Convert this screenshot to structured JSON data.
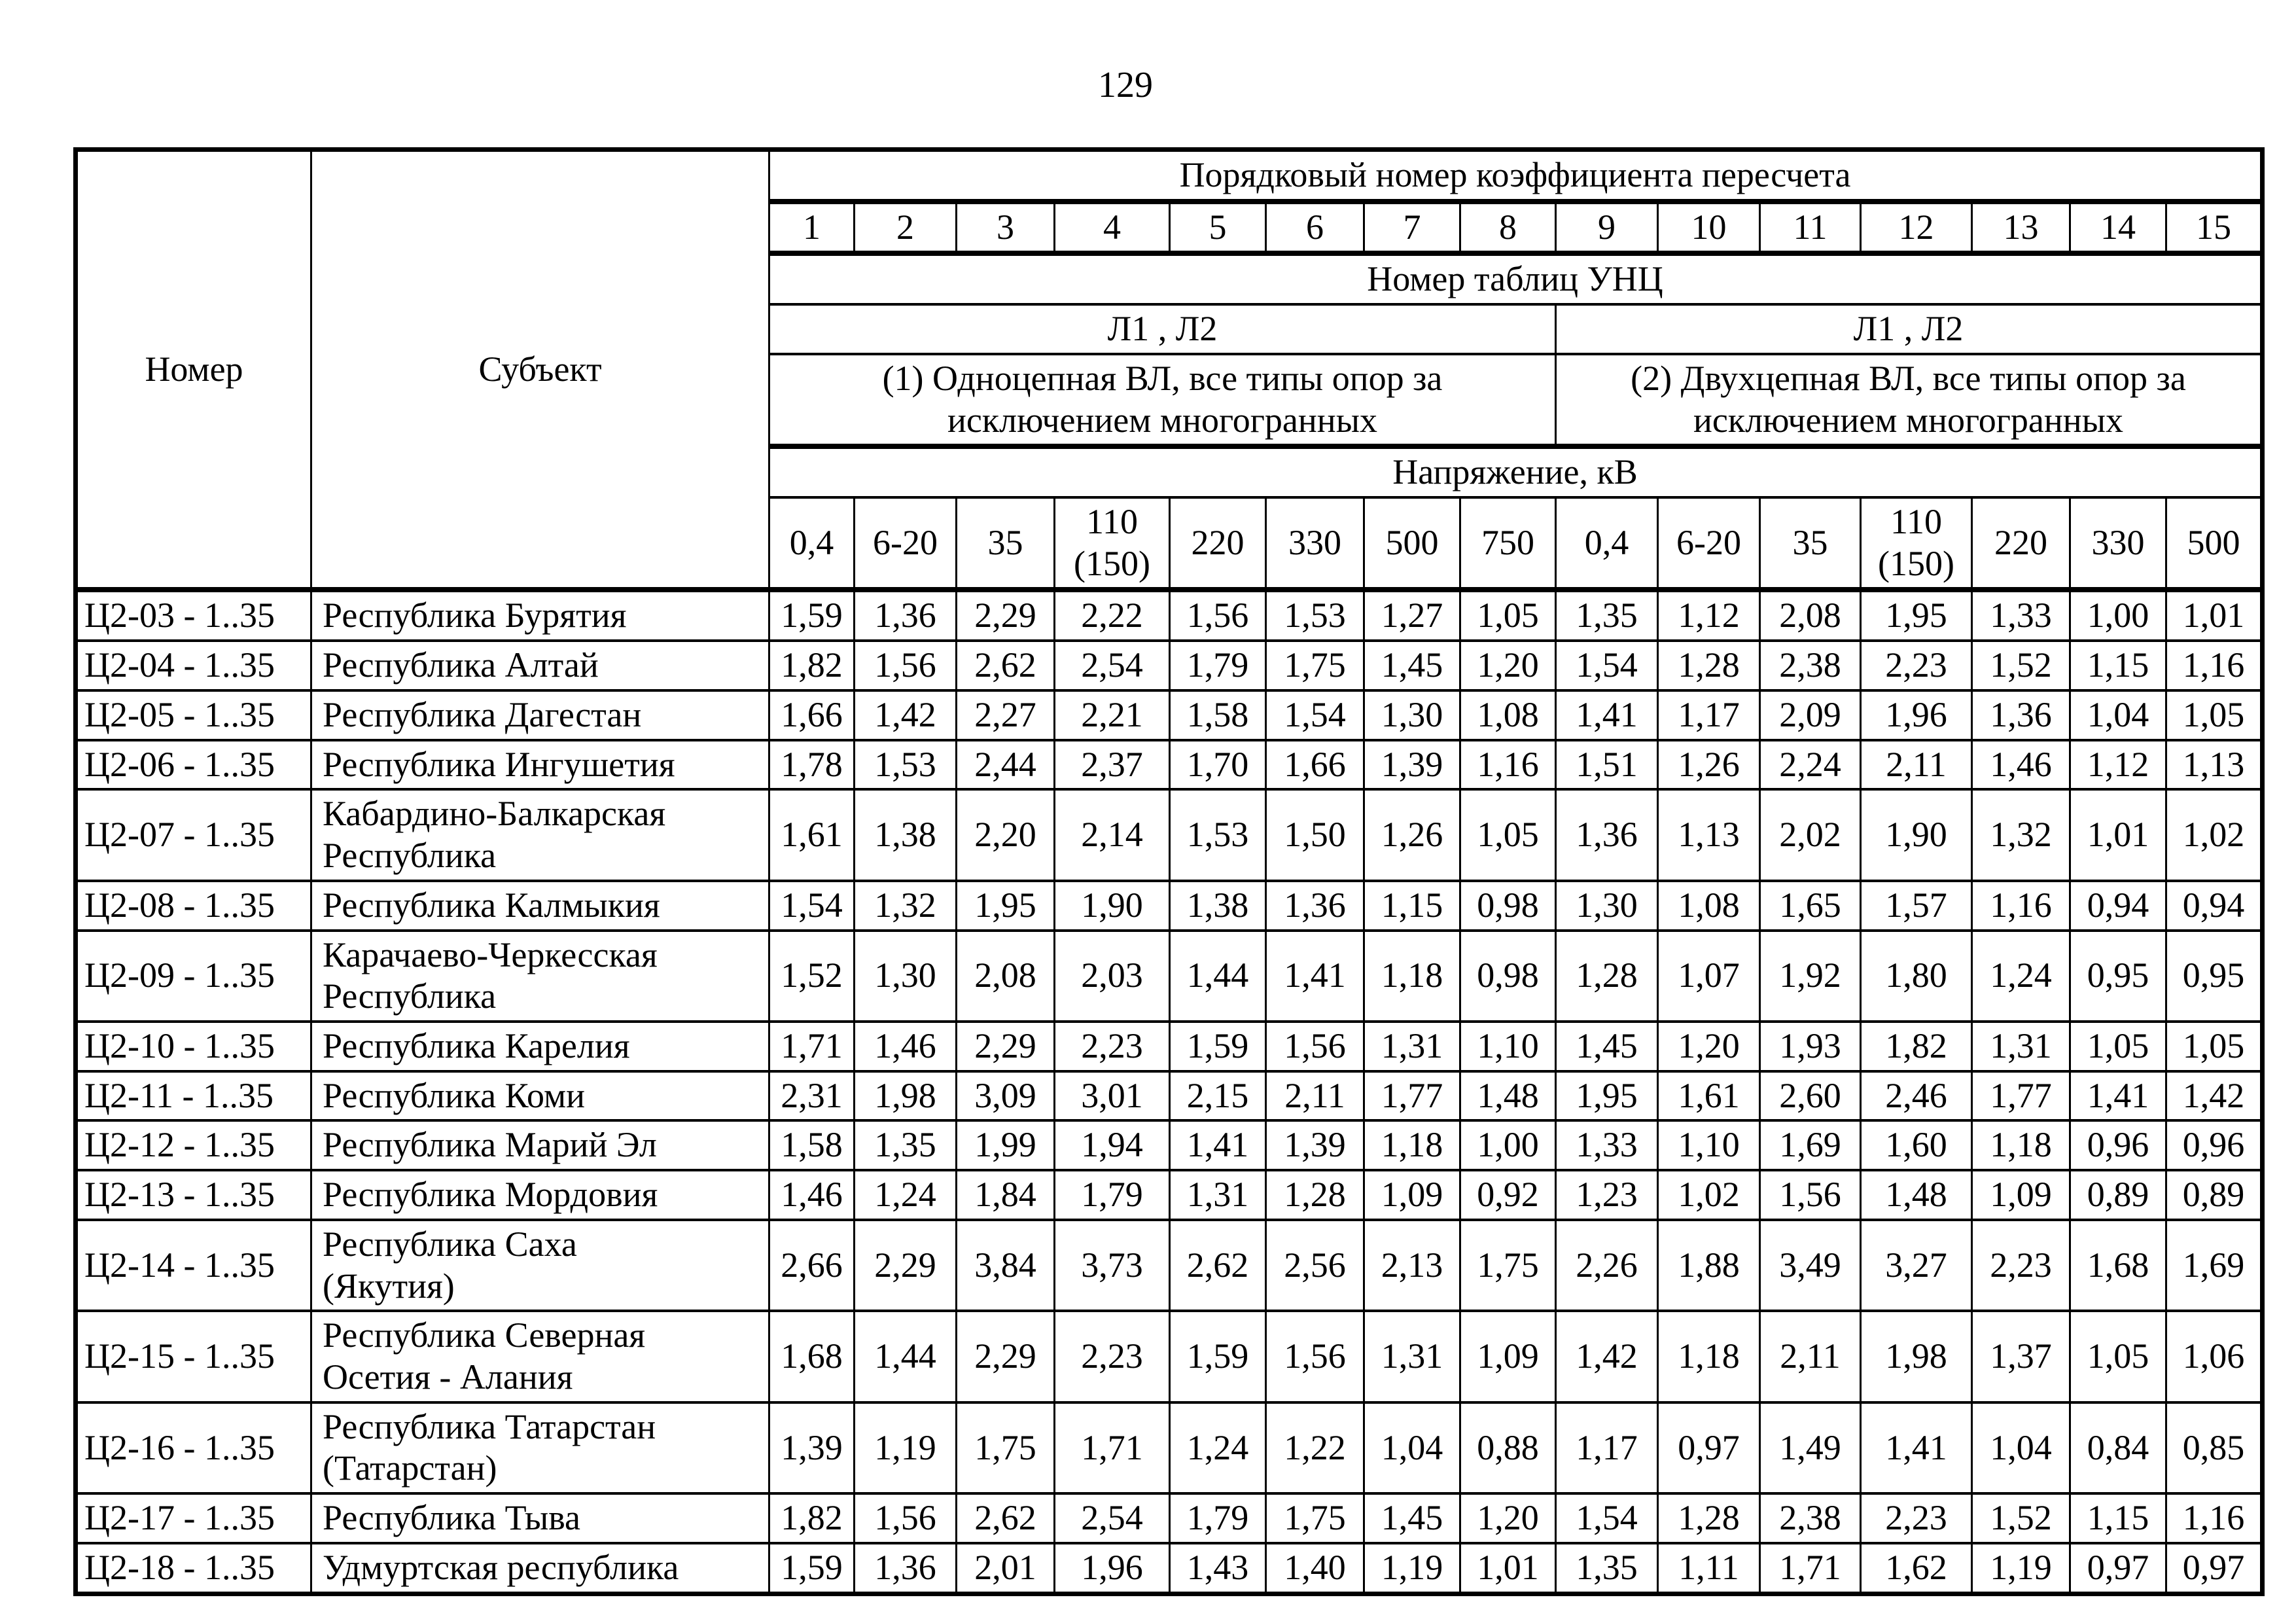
{
  "page_number": "129",
  "colors": {
    "ink": "#000000",
    "paper": "#ffffff"
  },
  "table": {
    "headers": {
      "number_col": "Номер",
      "subject_col": "Субъект",
      "ordinal_title": "Порядковый номер коэффициента пересчета",
      "ordinal_numbers": [
        "1",
        "2",
        "3",
        "4",
        "5",
        "6",
        "7",
        "8",
        "9",
        "10",
        "11",
        "12",
        "13",
        "14",
        "15"
      ],
      "unc_title": "Номер таблиц УНЦ",
      "group1_tables": "Л1 , Л2",
      "group2_tables": "Л1 , Л2",
      "group1_desc": "(1) Одноцепная ВЛ, все типы опор за\nисключением многогранных",
      "group2_desc": "(2) Двухцепная ВЛ, все типы опор за\nисключением многогранных",
      "voltage_title": "Напряжение, кВ",
      "voltages": [
        "0,4",
        "6-20",
        "35",
        "110\n(150)",
        "220",
        "330",
        "500",
        "750",
        "0,4",
        "6-20",
        "35",
        "110\n(150)",
        "220",
        "330",
        "500"
      ]
    },
    "rows": [
      {
        "nomer": "Ц2-03 - 1..35",
        "subject": "Республика Бурятия",
        "values": [
          "1,59",
          "1,36",
          "2,29",
          "2,22",
          "1,56",
          "1,53",
          "1,27",
          "1,05",
          "1,35",
          "1,12",
          "2,08",
          "1,95",
          "1,33",
          "1,00",
          "1,01"
        ]
      },
      {
        "nomer": "Ц2-04 - 1..35",
        "subject": "Республика Алтай",
        "values": [
          "1,82",
          "1,56",
          "2,62",
          "2,54",
          "1,79",
          "1,75",
          "1,45",
          "1,20",
          "1,54",
          "1,28",
          "2,38",
          "2,23",
          "1,52",
          "1,15",
          "1,16"
        ]
      },
      {
        "nomer": "Ц2-05 - 1..35",
        "subject": "Республика Дагестан",
        "values": [
          "1,66",
          "1,42",
          "2,27",
          "2,21",
          "1,58",
          "1,54",
          "1,30",
          "1,08",
          "1,41",
          "1,17",
          "2,09",
          "1,96",
          "1,36",
          "1,04",
          "1,05"
        ]
      },
      {
        "nomer": "Ц2-06 - 1..35",
        "subject": "Республика Ингушетия",
        "values": [
          "1,78",
          "1,53",
          "2,44",
          "2,37",
          "1,70",
          "1,66",
          "1,39",
          "1,16",
          "1,51",
          "1,26",
          "2,24",
          "2,11",
          "1,46",
          "1,12",
          "1,13"
        ]
      },
      {
        "nomer": "Ц2-07 - 1..35",
        "subject": "Кабардино-Балкарская\nРеспублика",
        "values": [
          "1,61",
          "1,38",
          "2,20",
          "2,14",
          "1,53",
          "1,50",
          "1,26",
          "1,05",
          "1,36",
          "1,13",
          "2,02",
          "1,90",
          "1,32",
          "1,01",
          "1,02"
        ]
      },
      {
        "nomer": "Ц2-08 - 1..35",
        "subject": "Республика Калмыкия",
        "values": [
          "1,54",
          "1,32",
          "1,95",
          "1,90",
          "1,38",
          "1,36",
          "1,15",
          "0,98",
          "1,30",
          "1,08",
          "1,65",
          "1,57",
          "1,16",
          "0,94",
          "0,94"
        ]
      },
      {
        "nomer": "Ц2-09 - 1..35",
        "subject": "Карачаево-Черкесская\nРеспублика",
        "values": [
          "1,52",
          "1,30",
          "2,08",
          "2,03",
          "1,44",
          "1,41",
          "1,18",
          "0,98",
          "1,28",
          "1,07",
          "1,92",
          "1,80",
          "1,24",
          "0,95",
          "0,95"
        ]
      },
      {
        "nomer": "Ц2-10 - 1..35",
        "subject": "Республика Карелия",
        "values": [
          "1,71",
          "1,46",
          "2,29",
          "2,23",
          "1,59",
          "1,56",
          "1,31",
          "1,10",
          "1,45",
          "1,20",
          "1,93",
          "1,82",
          "1,31",
          "1,05",
          "1,05"
        ]
      },
      {
        "nomer": "Ц2-11 - 1..35",
        "subject": "Республика Коми",
        "values": [
          "2,31",
          "1,98",
          "3,09",
          "3,01",
          "2,15",
          "2,11",
          "1,77",
          "1,48",
          "1,95",
          "1,61",
          "2,60",
          "2,46",
          "1,77",
          "1,41",
          "1,42"
        ]
      },
      {
        "nomer": "Ц2-12 - 1..35",
        "subject": "Республика Марий Эл",
        "values": [
          "1,58",
          "1,35",
          "1,99",
          "1,94",
          "1,41",
          "1,39",
          "1,18",
          "1,00",
          "1,33",
          "1,10",
          "1,69",
          "1,60",
          "1,18",
          "0,96",
          "0,96"
        ]
      },
      {
        "nomer": "Ц2-13 - 1..35",
        "subject": "Республика Мордовия",
        "values": [
          "1,46",
          "1,24",
          "1,84",
          "1,79",
          "1,31",
          "1,28",
          "1,09",
          "0,92",
          "1,23",
          "1,02",
          "1,56",
          "1,48",
          "1,09",
          "0,89",
          "0,89"
        ]
      },
      {
        "nomer": "Ц2-14 - 1..35",
        "subject": "Республика Саха\n(Якутия)",
        "values": [
          "2,66",
          "2,29",
          "3,84",
          "3,73",
          "2,62",
          "2,56",
          "2,13",
          "1,75",
          "2,26",
          "1,88",
          "3,49",
          "3,27",
          "2,23",
          "1,68",
          "1,69"
        ]
      },
      {
        "nomer": "Ц2-15 - 1..35",
        "subject": "Республика Северная\nОсетия - Алания",
        "values": [
          "1,68",
          "1,44",
          "2,29",
          "2,23",
          "1,59",
          "1,56",
          "1,31",
          "1,09",
          "1,42",
          "1,18",
          "2,11",
          "1,98",
          "1,37",
          "1,05",
          "1,06"
        ]
      },
      {
        "nomer": "Ц2-16 - 1..35",
        "subject": "Республика Татарстан\n(Татарстан)",
        "values": [
          "1,39",
          "1,19",
          "1,75",
          "1,71",
          "1,24",
          "1,22",
          "1,04",
          "0,88",
          "1,17",
          "0,97",
          "1,49",
          "1,41",
          "1,04",
          "0,84",
          "0,85"
        ]
      },
      {
        "nomer": "Ц2-17 - 1..35",
        "subject": "Республика Тыва",
        "values": [
          "1,82",
          "1,56",
          "2,62",
          "2,54",
          "1,79",
          "1,75",
          "1,45",
          "1,20",
          "1,54",
          "1,28",
          "2,38",
          "2,23",
          "1,52",
          "1,15",
          "1,16"
        ]
      },
      {
        "nomer": "Ц2-18 - 1..35",
        "subject": "Удмуртская республика",
        "values": [
          "1,59",
          "1,36",
          "2,01",
          "1,96",
          "1,43",
          "1,40",
          "1,19",
          "1,01",
          "1,35",
          "1,11",
          "1,71",
          "1,62",
          "1,19",
          "0,97",
          "0,97"
        ]
      }
    ]
  }
}
